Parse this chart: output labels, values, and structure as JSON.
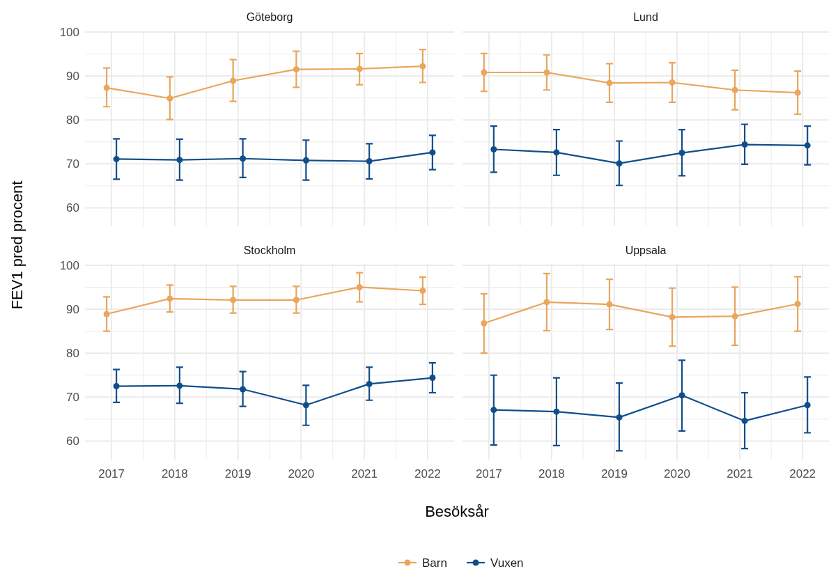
{
  "chart_data": [
    {
      "type": "line",
      "title": "Göteborg",
      "ylabel": "FEV1 pred procent",
      "categories": [
        "2017",
        "2018",
        "2019",
        "2020",
        "2021",
        "2022"
      ],
      "ylim": [
        55.8,
        100.3
      ],
      "yticks": [
        60,
        70,
        80,
        90,
        100
      ],
      "grid": true,
      "marker": "circle",
      "tick_labels": "y",
      "legend": "bottom",
      "series": [
        {
          "name": "Barn",
          "color": "#e9a65c",
          "values": [
            87.3,
            84.9,
            88.9,
            91.5,
            91.6,
            92.2
          ],
          "errors": [
            [
              83,
              91.8
            ],
            [
              80.1,
              89.8
            ],
            [
              84.2,
              93.7
            ],
            [
              87.4,
              95.6
            ],
            [
              88,
              95.1
            ],
            [
              88.5,
              96
            ]
          ]
        },
        {
          "name": "Vuxen",
          "color": "#104e8b",
          "values": [
            71.1,
            70.9,
            71.2,
            70.8,
            70.6,
            72.6
          ],
          "errors": [
            [
              66.5,
              75.7
            ],
            [
              66.3,
              75.6
            ],
            [
              66.9,
              75.7
            ],
            [
              66.3,
              75.4
            ],
            [
              66.6,
              74.6
            ],
            [
              68.7,
              76.5
            ]
          ]
        }
      ]
    },
    {
      "type": "line",
      "title": "Lund",
      "categories": [
        "2017",
        "2018",
        "2019",
        "2020",
        "2021",
        "2022"
      ],
      "ylim": [
        55.8,
        100.3
      ],
      "yticks": [
        60,
        70,
        80,
        90,
        100
      ],
      "grid": true,
      "marker": "circle",
      "tick_labels": false,
      "series": [
        {
          "color": "#e9a65c",
          "values": [
            90.8,
            90.8,
            88.4,
            88.5,
            86.8,
            86.2
          ],
          "errors": [
            [
              86.5,
              95.1
            ],
            [
              86.8,
              94.8
            ],
            [
              84,
              92.8
            ],
            [
              84,
              93
            ],
            [
              82.3,
              91.3
            ],
            [
              81.3,
              91.1
            ]
          ]
        },
        {
          "color": "#104e8b",
          "values": [
            73.3,
            72.6,
            70.1,
            72.5,
            74.4,
            74.2
          ],
          "errors": [
            [
              68.1,
              78.6
            ],
            [
              67.4,
              77.8
            ],
            [
              65.1,
              75.2
            ],
            [
              67.3,
              77.8
            ],
            [
              69.9,
              79
            ],
            [
              69.8,
              78.6
            ]
          ]
        }
      ]
    },
    {
      "type": "line",
      "title": "Stockholm",
      "xlabel": "Besöksår",
      "categories": [
        "2017",
        "2018",
        "2019",
        "2020",
        "2021",
        "2022"
      ],
      "ylim": [
        55.8,
        100.3
      ],
      "yticks": [
        60,
        70,
        80,
        90,
        100
      ],
      "grid": true,
      "marker": "circle",
      "series": [
        {
          "color": "#e9a65c",
          "values": [
            88.9,
            92.4,
            92.1,
            92.1,
            95,
            94.2
          ],
          "errors": [
            [
              85,
              92.8
            ],
            [
              89.4,
              95.5
            ],
            [
              89.1,
              95.2
            ],
            [
              89.1,
              95.2
            ],
            [
              91.7,
              98.3
            ],
            [
              91.1,
              97.3
            ]
          ]
        },
        {
          "color": "#104e8b",
          "values": [
            72.5,
            72.6,
            71.8,
            68.2,
            73,
            74.4
          ],
          "errors": [
            [
              68.8,
              76.3
            ],
            [
              68.6,
              76.8
            ],
            [
              67.9,
              75.8
            ],
            [
              63.6,
              72.7
            ],
            [
              69.3,
              76.8
            ],
            [
              71,
              77.8
            ]
          ]
        }
      ]
    },
    {
      "type": "line",
      "title": "Uppsala",
      "categories": [
        "2017",
        "2018",
        "2019",
        "2020",
        "2021",
        "2022"
      ],
      "ylim": [
        55.8,
        100.3
      ],
      "yticks": [
        60,
        70,
        80,
        90,
        100
      ],
      "grid": true,
      "marker": "circle",
      "tick_labels": "x",
      "series": [
        {
          "color": "#e9a65c",
          "values": [
            86.8,
            91.6,
            91.1,
            88.2,
            88.4,
            91.2
          ],
          "errors": [
            [
              80,
              93.5
            ],
            [
              85.1,
              98.1
            ],
            [
              85.4,
              96.8
            ],
            [
              81.6,
              94.8
            ],
            [
              81.8,
              95
            ],
            [
              85,
              97.4
            ]
          ]
        },
        {
          "color": "#104e8b",
          "values": [
            67.1,
            66.7,
            65.4,
            70.4,
            64.6,
            68.2
          ],
          "errors": [
            [
              59.1,
              75
            ],
            [
              59,
              74.4
            ],
            [
              57.8,
              73.2
            ],
            [
              62.3,
              78.4
            ],
            [
              58.3,
              71
            ],
            [
              61.9,
              74.6
            ]
          ]
        }
      ]
    }
  ]
}
